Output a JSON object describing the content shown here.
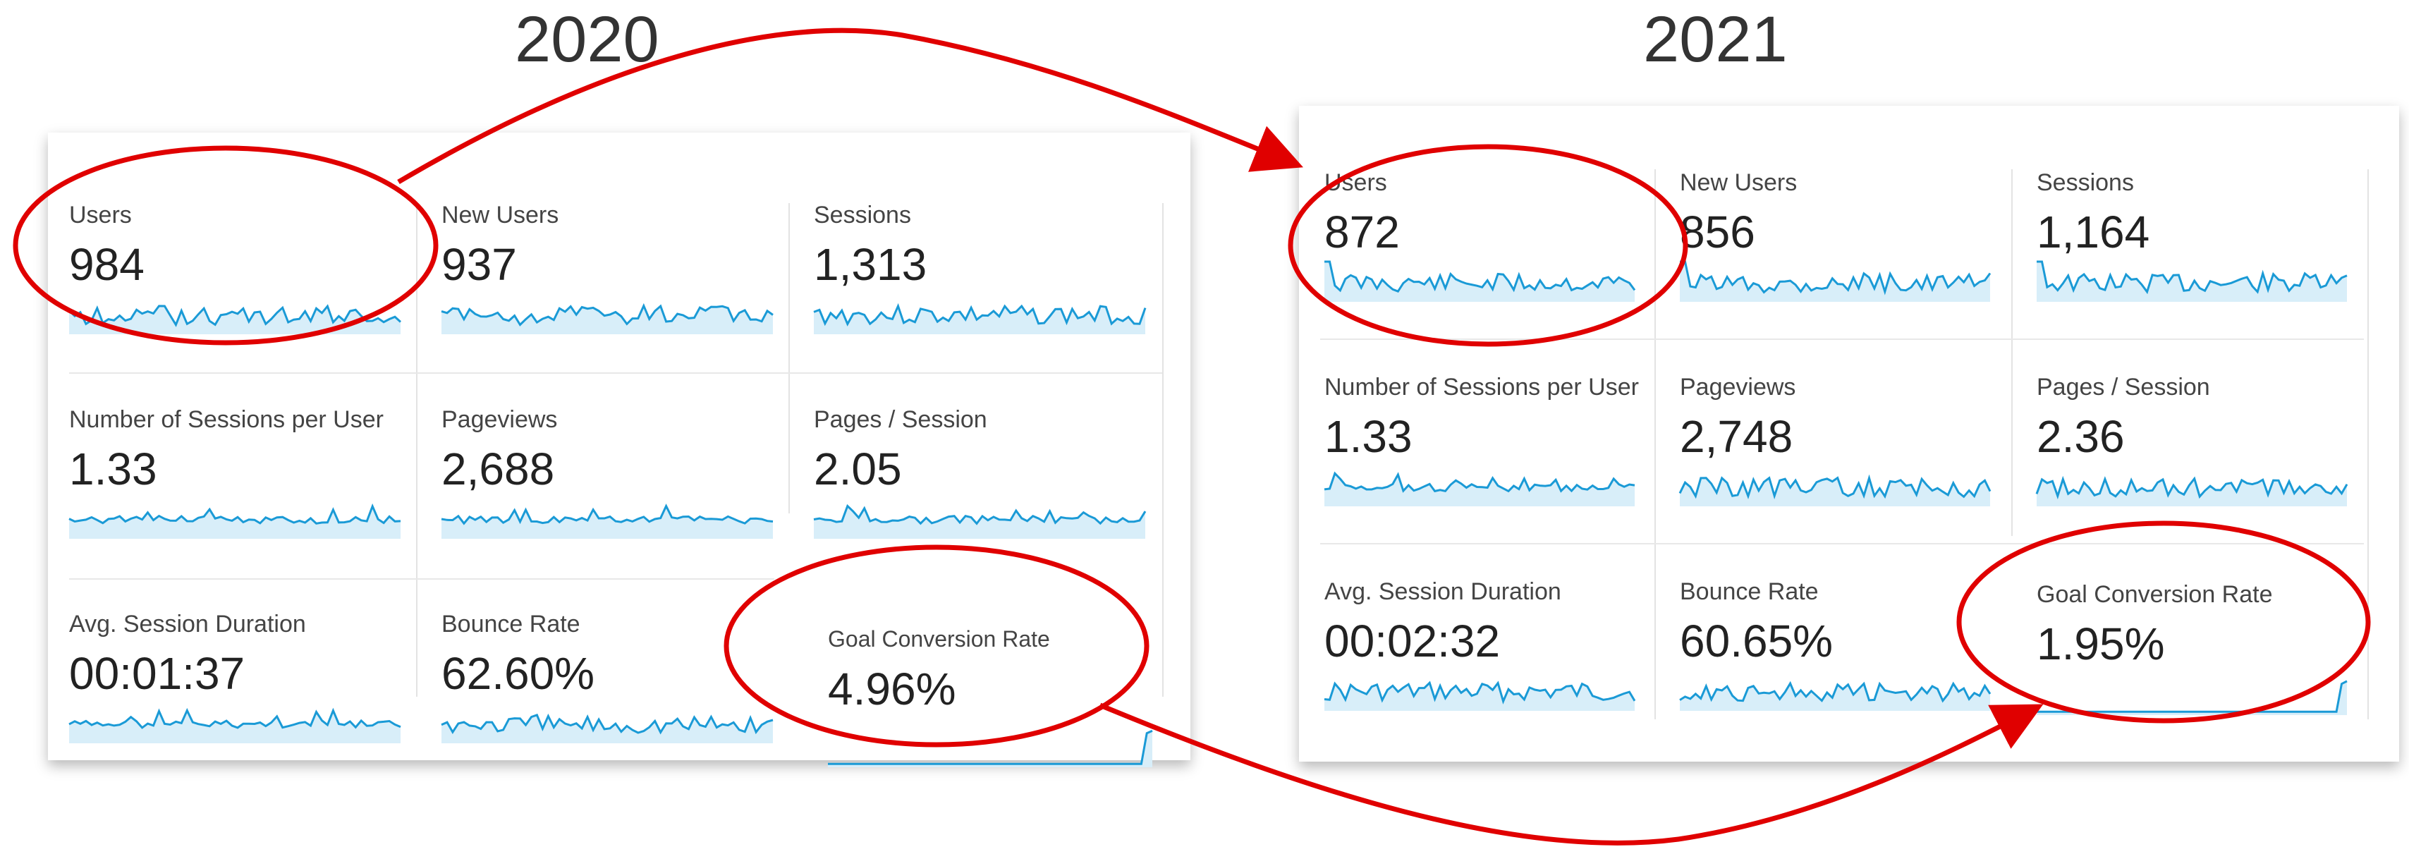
{
  "years": {
    "left": "2020",
    "right": "2021"
  },
  "colors": {
    "spark_line": "#1a9ad6",
    "spark_fill": "#d8eef9",
    "highlight": "#e00000"
  },
  "left_panel": {
    "metrics": [
      {
        "label": "Users",
        "value": "984"
      },
      {
        "label": "New Users",
        "value": "937"
      },
      {
        "label": "Sessions",
        "value": "1,313"
      },
      {
        "label": "Number of Sessions per User",
        "value": "1.33"
      },
      {
        "label": "Pageviews",
        "value": "2,688"
      },
      {
        "label": "Pages / Session",
        "value": "2.05"
      },
      {
        "label": "Avg. Session Duration",
        "value": "00:01:37"
      },
      {
        "label": "Bounce Rate",
        "value": "62.60%"
      },
      {
        "label": "Goal Conversion Rate",
        "value": "4.96%"
      }
    ]
  },
  "right_panel": {
    "metrics": [
      {
        "label": "Users",
        "value": "872"
      },
      {
        "label": "New Users",
        "value": "856"
      },
      {
        "label": "Sessions",
        "value": "1,164"
      },
      {
        "label": "Number of Sessions per User",
        "value": "1.33"
      },
      {
        "label": "Pageviews",
        "value": "2,748"
      },
      {
        "label": "Pages / Session",
        "value": "2.36"
      },
      {
        "label": "Avg. Session Duration",
        "value": "00:02:32"
      },
      {
        "label": "Bounce Rate",
        "value": "60.65%"
      },
      {
        "label": "Goal Conversion Rate",
        "value": "1.95%"
      }
    ]
  }
}
